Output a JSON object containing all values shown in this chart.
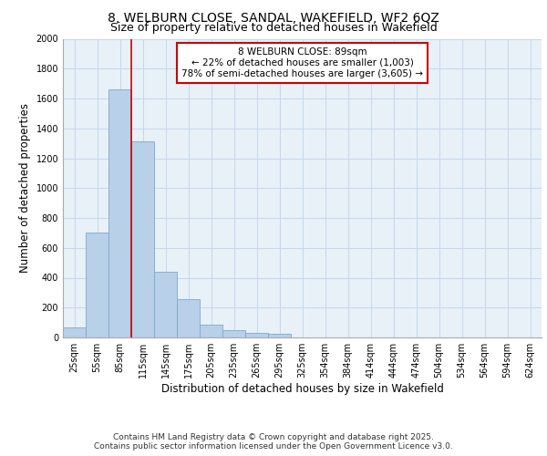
{
  "title_line1": "8, WELBURN CLOSE, SANDAL, WAKEFIELD, WF2 6QZ",
  "title_line2": "Size of property relative to detached houses in Wakefield",
  "xlabel": "Distribution of detached houses by size in Wakefield",
  "ylabel": "Number of detached properties",
  "categories": [
    "25sqm",
    "55sqm",
    "85sqm",
    "115sqm",
    "145sqm",
    "175sqm",
    "205sqm",
    "235sqm",
    "265sqm",
    "295sqm",
    "325sqm",
    "354sqm",
    "384sqm",
    "414sqm",
    "444sqm",
    "474sqm",
    "504sqm",
    "534sqm",
    "564sqm",
    "594sqm",
    "624sqm"
  ],
  "values": [
    65,
    700,
    1660,
    1310,
    440,
    255,
    88,
    48,
    28,
    22,
    2,
    0,
    2,
    0,
    0,
    0,
    0,
    0,
    0,
    0,
    0
  ],
  "bar_color": "#b8d0e8",
  "bar_edge_color": "#7aaad0",
  "vline_color": "#cc0000",
  "vline_pos": 2.5,
  "annotation_text": "8 WELBURN CLOSE: 89sqm\n← 22% of detached houses are smaller (1,003)\n78% of semi-detached houses are larger (3,605) →",
  "annotation_box_color": "#ffffff",
  "annotation_box_edge_color": "#cc0000",
  "ylim": [
    0,
    2000
  ],
  "yticks": [
    0,
    200,
    400,
    600,
    800,
    1000,
    1200,
    1400,
    1600,
    1800,
    2000
  ],
  "grid_color": "#c5d8ec",
  "bg_color": "#e8f0f8",
  "footer_line1": "Contains HM Land Registry data © Crown copyright and database right 2025.",
  "footer_line2": "Contains public sector information licensed under the Open Government Licence v3.0.",
  "title_fontsize": 10,
  "subtitle_fontsize": 9,
  "axis_label_fontsize": 8.5,
  "tick_fontsize": 7,
  "annotation_fontsize": 7.5,
  "footer_fontsize": 6.5
}
